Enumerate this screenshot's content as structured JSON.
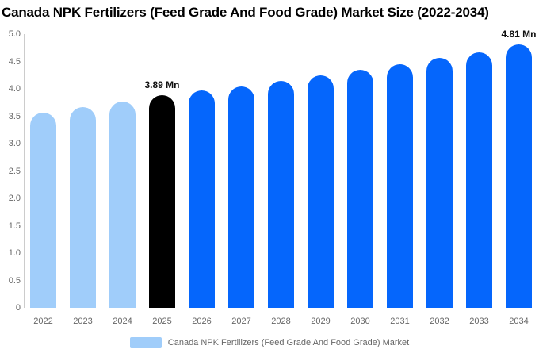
{
  "title": "Canada NPK Fertilizers (Feed Grade And Food Grade) Market Size (2022-2034)",
  "colors": {
    "historical": "#a0cdfa",
    "base_year": "#000000",
    "forecast": "#0566fc",
    "axis_line": "#cccccc",
    "tick_text": "#666666",
    "value_label_text": "#111111",
    "title_text": "#000000",
    "legend_text": "#666666",
    "background": "#ffffff"
  },
  "chart_data": {
    "type": "bar",
    "title": "Canada NPK Fertilizers (Feed Grade And Food Grade) Market Size (2022-2034)",
    "unit": "Mn",
    "categories": [
      "2022",
      "2023",
      "2024",
      "2025",
      "2026",
      "2027",
      "2028",
      "2029",
      "2030",
      "2031",
      "2032",
      "2033",
      "2034"
    ],
    "values": [
      3.56,
      3.67,
      3.77,
      3.89,
      3.97,
      4.05,
      4.15,
      4.25,
      4.35,
      4.45,
      4.56,
      4.67,
      4.81
    ],
    "bar_roles": [
      "historical",
      "historical",
      "historical",
      "base_year",
      "forecast",
      "forecast",
      "forecast",
      "forecast",
      "forecast",
      "forecast",
      "forecast",
      "forecast",
      "forecast"
    ],
    "point_labels": {
      "2025": "3.89 Mn",
      "2034": "4.81 Mn"
    },
    "xlabel": "",
    "ylabel": "",
    "ylim": [
      0,
      5
    ],
    "ytick_labels": [
      "5.0",
      "4.5",
      "4.0",
      "3.5",
      "3.0",
      "2.5",
      "2.0",
      "1.5",
      "1.0",
      "0.5",
      "0"
    ],
    "ytick_values": [
      5.0,
      4.5,
      4.0,
      3.5,
      3.0,
      2.5,
      2.0,
      1.5,
      1.0,
      0.5,
      0
    ],
    "grid": false,
    "legend": {
      "position": "bottom-center",
      "items": [
        {
          "label": "Canada NPK Fertilizers (Feed Grade And Food Grade) Market",
          "swatch_color": "#a0cdfa"
        }
      ]
    }
  }
}
